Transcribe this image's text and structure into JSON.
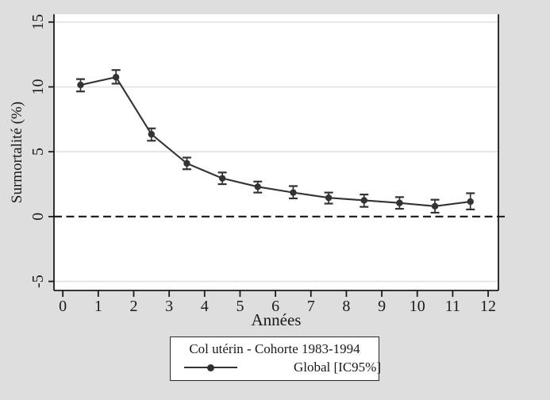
{
  "colors": {
    "figure_background": "#dedede",
    "plot_background": "#ffffff",
    "grid": "#e0e0e0",
    "axis": "#1a1a1a",
    "series": "#333333",
    "zero_line": "#222222"
  },
  "chart_data": {
    "type": "line",
    "title": "",
    "xlabel": "Années",
    "ylabel": "Surmortalité (%)",
    "xlim": [
      -0.25,
      12.29
    ],
    "ylim": [
      -5.7,
      15.6
    ],
    "x_ticks": [
      0,
      1,
      2,
      3,
      4,
      5,
      6,
      7,
      8,
      9,
      10,
      11,
      12
    ],
    "y_ticks": [
      -5,
      0,
      5,
      10,
      15
    ],
    "grid_lines_y": [
      -5,
      5,
      10,
      15
    ],
    "zero_line_y": 0,
    "grid": "horizontal-only",
    "legend_position": "bottom",
    "series": [
      {
        "name": "Global [IC95%]",
        "marker": "filled-circle",
        "x": [
          0.5,
          1.5,
          2.5,
          3.5,
          4.5,
          5.5,
          6.5,
          7.5,
          8.5,
          9.5,
          10.5,
          11.5
        ],
        "y": [
          10.15,
          10.75,
          6.35,
          4.1,
          2.95,
          2.3,
          1.85,
          1.45,
          1.25,
          1.05,
          0.8,
          1.15
        ],
        "ci_low": [
          9.65,
          10.25,
          5.85,
          3.65,
          2.5,
          1.85,
          1.4,
          1.0,
          0.75,
          0.6,
          0.3,
          0.55
        ],
        "ci_high": [
          10.6,
          11.3,
          6.8,
          4.55,
          3.4,
          2.7,
          2.35,
          1.85,
          1.7,
          1.5,
          1.3,
          1.8
        ]
      }
    ],
    "legend": {
      "title": "Col utérin - Cohorte 1983-1994",
      "entries": [
        "Global [IC95%]"
      ]
    }
  }
}
